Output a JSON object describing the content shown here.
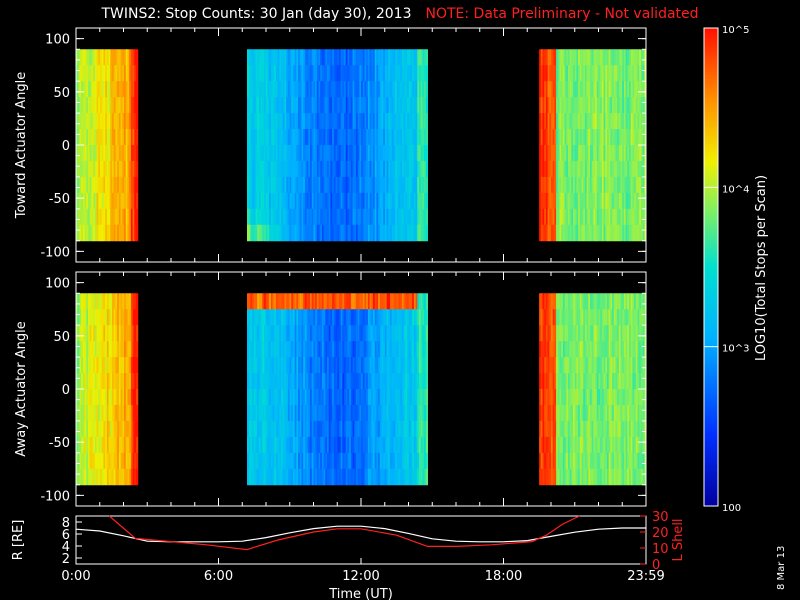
{
  "title": "TWINS2: Stop Counts: 30 Jan (day  30), 2013",
  "note": "NOTE: Data Preliminary - Not validated",
  "stamp": "8 Mar 13",
  "colorbar": {
    "label": "LOG10(Total Stops per Scan)",
    "ticks": [
      {
        "label": "10^5",
        "value": 100000
      },
      {
        "label": "10^4",
        "value": 10000
      },
      {
        "label": "10^3",
        "value": 1000
      },
      {
        "label": "100",
        "value": 100
      }
    ],
    "range": [
      100,
      100000
    ],
    "scale": "log"
  },
  "chart_data": [
    {
      "type": "heatmap",
      "ylabel": "Toward Actuator Angle",
      "xlim": [
        0,
        24
      ],
      "ylim": [
        -110,
        110
      ],
      "yticks": [
        -100,
        -50,
        0,
        50,
        100
      ],
      "xticks": [
        0,
        6,
        12,
        18,
        24
      ],
      "data_angle_range": [
        -90,
        90
      ],
      "color_scale": "log",
      "data_intervals_hours": [
        [
          0,
          2.6
        ],
        [
          7.2,
          14.8
        ],
        [
          19.5,
          24
        ]
      ],
      "log10_counts_by_period": {
        "0-2.6": 4.0,
        "7.2-14.8": 2.9,
        "19.5-24": 4.0
      }
    },
    {
      "type": "heatmap",
      "ylabel": "Away Actuator Angle",
      "xlim": [
        0,
        24
      ],
      "ylim": [
        -110,
        110
      ],
      "yticks": [
        -100,
        -50,
        0,
        50,
        100
      ],
      "xticks": [
        0,
        6,
        12,
        18,
        24
      ],
      "data_angle_range": [
        -90,
        90
      ],
      "color_scale": "log",
      "data_intervals_hours": [
        [
          0,
          2.6
        ],
        [
          7.2,
          14.8
        ],
        [
          19.5,
          24
        ]
      ],
      "log10_counts_by_period": {
        "0-2.6": 4.0,
        "7.2-14.8": 2.9,
        "19.5-24": 4.0
      }
    },
    {
      "type": "line",
      "xlabel": "Time (UT)",
      "xticks": [
        "0:00",
        "6:00",
        "12:00",
        "18:00",
        "23:59"
      ],
      "xlim": [
        0,
        24
      ],
      "ylabel": "R [RE]",
      "ylim": [
        1,
        9
      ],
      "yticks": [
        2,
        4,
        6,
        8
      ],
      "ylabel2": "L Shell",
      "ylim2": [
        0,
        30
      ],
      "yticks2": [
        0,
        10,
        20,
        30
      ],
      "series": [
        {
          "axis": "left",
          "color": "#ffffff",
          "x": [
            0,
            1,
            2,
            3,
            4,
            5,
            6,
            7,
            8,
            9,
            10,
            11,
            12,
            13,
            14,
            15,
            16,
            17,
            18,
            19,
            20,
            21,
            22,
            23,
            24
          ],
          "y": [
            6.8,
            6.5,
            5.7,
            4.8,
            4.7,
            4.7,
            4.7,
            4.8,
            5.4,
            6.2,
            6.9,
            7.3,
            7.3,
            6.9,
            6.1,
            5.2,
            4.8,
            4.7,
            4.7,
            4.9,
            5.6,
            6.3,
            6.8,
            7.0,
            7.0
          ]
        },
        {
          "axis": "right",
          "color": "#ff2020",
          "x": [
            1.4,
            2.5,
            4,
            5.5,
            7.2,
            8.5,
            10,
            11,
            12,
            13.5,
            14.8,
            16,
            17.5,
            19.2,
            19.8,
            20.5,
            21.2
          ],
          "y": [
            30,
            16,
            14,
            12,
            9,
            15,
            20,
            22,
            22,
            18,
            11,
            11,
            12,
            14,
            18,
            25,
            30
          ]
        }
      ]
    }
  ]
}
